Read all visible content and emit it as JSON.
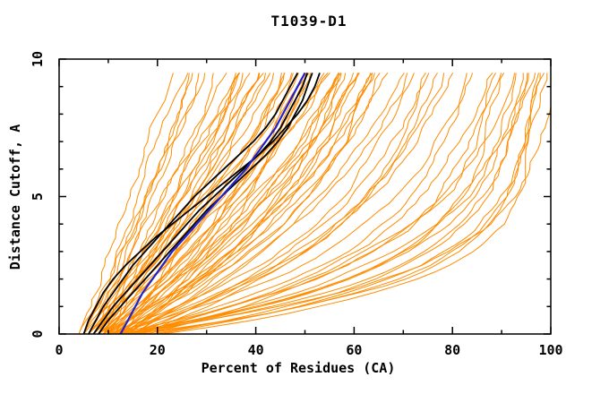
{
  "window": {
    "background": "#ffffff"
  },
  "chart_data": {
    "type": "line",
    "title": "T1039-D1",
    "xlabel": "Percent of Residues (CA)",
    "ylabel": "Distance Cutoff, A",
    "xlim": [
      0,
      100
    ],
    "ylim": [
      0,
      10
    ],
    "x_major_ticks": [
      0,
      20,
      40,
      60,
      80,
      100
    ],
    "x_minor_ticks": [
      10,
      30,
      50,
      70,
      90
    ],
    "y_major_ticks": [
      0,
      5,
      10
    ],
    "y_minor_ticks": [
      1,
      2,
      3,
      4,
      6,
      7,
      8,
      9
    ],
    "grid": false,
    "legend_position": "none",
    "colors": {
      "model_curve": "#ff8c00",
      "highlight_curve": "#000000",
      "reference_curve": "#2222cc",
      "axis": "#000000",
      "background": "#ffffff"
    },
    "y_drawn_max": 9.5,
    "n_model_curves": 75,
    "curve_encoding": "model_curves rows are [x0, x1, w, k]; estimated percent x at cutoff y: x(y) = x0 + (x1-x0)*(w*t + (1-w)*(1-(1-t)^k)) with t = y/9.5",
    "model_curves": [
      [
        4,
        21,
        0.9,
        1.5
      ],
      [
        5,
        24,
        0.85,
        1.5
      ],
      [
        4,
        26,
        0.8,
        1.6
      ],
      [
        6,
        27,
        0.9,
        1.4
      ],
      [
        5,
        29,
        0.75,
        1.7
      ],
      [
        7,
        30,
        0.85,
        1.5
      ],
      [
        6,
        31,
        0.7,
        1.8
      ],
      [
        8,
        33,
        0.9,
        1.4
      ],
      [
        5,
        34,
        0.8,
        1.6
      ],
      [
        7,
        35,
        0.75,
        1.8
      ],
      [
        9,
        36,
        0.85,
        1.5
      ],
      [
        6,
        37,
        0.7,
        1.9
      ],
      [
        8,
        38,
        0.8,
        1.6
      ],
      [
        10,
        39,
        0.9,
        1.4
      ],
      [
        5,
        40,
        0.75,
        1.8
      ],
      [
        7,
        40,
        0.65,
        2.0
      ],
      [
        9,
        41,
        0.8,
        1.6
      ],
      [
        6,
        42,
        0.7,
        1.9
      ],
      [
        8,
        43,
        0.85,
        1.5
      ],
      [
        10,
        44,
        0.75,
        1.8
      ],
      [
        6,
        44,
        0.6,
        2.0
      ],
      [
        9,
        45,
        0.7,
        1.8
      ],
      [
        12,
        46,
        0.8,
        1.6
      ],
      [
        7,
        47,
        0.55,
        2.2
      ],
      [
        10,
        48,
        0.65,
        2.0
      ],
      [
        13,
        49,
        0.75,
        1.8
      ],
      [
        8,
        50,
        0.6,
        2.1
      ],
      [
        11,
        51,
        0.7,
        1.9
      ],
      [
        14,
        52,
        0.5,
        2.3
      ],
      [
        9,
        52,
        0.65,
        2.0
      ],
      [
        12,
        53,
        0.55,
        2.2
      ],
      [
        7,
        54,
        0.7,
        1.8
      ],
      [
        10,
        55,
        0.6,
        2.1
      ],
      [
        13,
        56,
        0.5,
        2.4
      ],
      [
        8,
        56,
        0.65,
        2.0
      ],
      [
        11,
        57,
        0.55,
        2.2
      ],
      [
        14,
        58,
        0.45,
        2.5
      ],
      [
        9,
        58,
        0.6,
        2.1
      ],
      [
        12,
        59,
        0.5,
        2.3
      ],
      [
        10,
        60,
        0.65,
        2.0
      ],
      [
        13,
        60,
        0.45,
        2.6
      ],
      [
        8,
        61,
        0.55,
        2.2
      ],
      [
        11,
        61,
        0.5,
        2.4
      ],
      [
        14,
        62,
        0.6,
        2.1
      ],
      [
        9,
        62,
        0.4,
        2.7
      ],
      [
        12,
        63,
        0.5,
        2.3
      ],
      [
        15,
        63,
        0.45,
        2.5
      ],
      [
        10,
        64,
        0.55,
        2.2
      ],
      [
        9,
        65,
        0.45,
        2.6
      ],
      [
        12,
        67,
        0.4,
        2.8
      ],
      [
        15,
        68,
        0.5,
        2.4
      ],
      [
        10,
        70,
        0.35,
        3.0
      ],
      [
        13,
        72,
        0.45,
        2.6
      ],
      [
        16,
        73,
        0.4,
        2.9
      ],
      [
        11,
        75,
        0.35,
        3.1
      ],
      [
        14,
        76,
        0.3,
        3.3
      ],
      [
        17,
        78,
        0.4,
        2.8
      ],
      [
        12,
        80,
        0.35,
        3.0
      ],
      [
        10,
        82,
        0.3,
        3.4
      ],
      [
        13,
        84,
        0.25,
        3.8
      ],
      [
        16,
        86,
        0.3,
        3.5
      ],
      [
        11,
        88,
        0.2,
        4.2
      ],
      [
        14,
        90,
        0.25,
        3.9
      ],
      [
        18,
        91,
        0.3,
        3.6
      ],
      [
        12,
        92,
        0.2,
        4.5
      ],
      [
        15,
        93,
        0.25,
        4.0
      ],
      [
        19,
        94,
        0.15,
        4.8
      ],
      [
        13,
        95,
        0.2,
        4.4
      ],
      [
        16,
        96,
        0.25,
        4.1
      ],
      [
        20,
        97,
        0.15,
        5.0
      ],
      [
        14,
        98,
        0.2,
        4.6
      ],
      [
        17,
        99,
        0.15,
        5.2
      ],
      [
        21,
        100,
        0.12,
        5.5
      ],
      [
        12,
        100,
        0.18,
        5.0
      ],
      [
        15,
        100,
        0.14,
        5.6
      ]
    ],
    "highlight_curves": {
      "color": "#000000",
      "y_start": 0,
      "y_step": 0.5,
      "series": [
        [
          6,
          7.5,
          9,
          11,
          13,
          15,
          17.5,
          20,
          22.5,
          25,
          27.5,
          30.5,
          33.5,
          36.5,
          39.5,
          42,
          44,
          45.5,
          47,
          48.5
        ],
        [
          7,
          9,
          11,
          13.5,
          16,
          18.5,
          21,
          23.5,
          26,
          28.5,
          31.5,
          34.5,
          37.5,
          40.5,
          43,
          45,
          46.5,
          48,
          49.5,
          50.5
        ],
        [
          5,
          6,
          7.5,
          9,
          11,
          13.5,
          16.5,
          19.5,
          23,
          26.5,
          30,
          33.5,
          37,
          40.5,
          43.5,
          46,
          48.5,
          50.5,
          52,
          53
        ],
        [
          8,
          10,
          12.5,
          15,
          17.5,
          20,
          22.5,
          25,
          27.5,
          30,
          33,
          36,
          39,
          42,
          44.5,
          46.5,
          48,
          49.5,
          50.5,
          51.5
        ]
      ]
    },
    "reference_curve": {
      "color": "#2222cc",
      "y_start": 0,
      "y_step": 0.5,
      "x": [
        12.5,
        14,
        15.5,
        17,
        19,
        21,
        23,
        25.5,
        28,
        30.5,
        33,
        35.5,
        38,
        40,
        42,
        44,
        45.5,
        47,
        48.5,
        50
      ]
    }
  }
}
